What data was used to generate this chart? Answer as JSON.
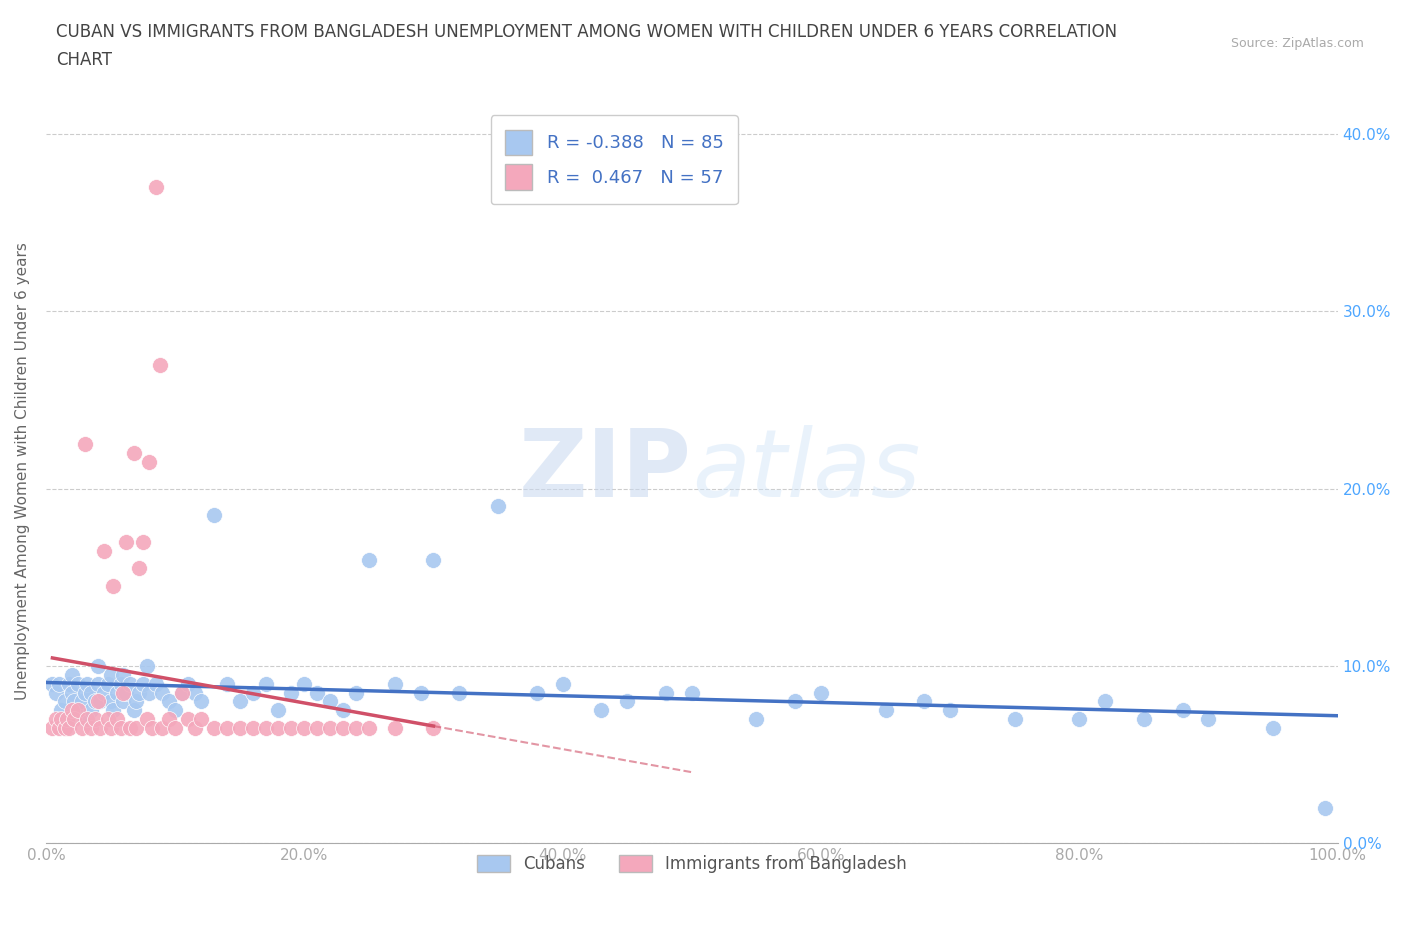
{
  "title_line1": "CUBAN VS IMMIGRANTS FROM BANGLADESH UNEMPLOYMENT AMONG WOMEN WITH CHILDREN UNDER 6 YEARS CORRELATION",
  "title_line2": "CHART",
  "source": "Source: ZipAtlas.com",
  "xlabel_ticks": [
    "0.0%",
    "20.0%",
    "40.0%",
    "60.0%",
    "80.0%",
    "100.0%"
  ],
  "xlabel_vals": [
    0.0,
    0.2,
    0.4,
    0.6,
    0.8,
    1.0
  ],
  "ylabel_ticks": [
    "0.0%",
    "10.0%",
    "20.0%",
    "30.0%",
    "40.0%"
  ],
  "ylabel_vals": [
    0.0,
    0.1,
    0.2,
    0.3,
    0.4
  ],
  "ylabel_label": "Unemployment Among Women with Children Under 6 years",
  "legend_bottom_labels": [
    "Cubans",
    "Immigrants from Bangladesh"
  ],
  "R_cubans": -0.388,
  "N_cubans": 85,
  "R_bangladesh": 0.467,
  "N_bangladesh": 57,
  "color_cubans": "#a8c8f0",
  "color_bangladesh": "#f4a8bc",
  "trendline_color_cubans": "#4472c4",
  "trendline_color_bangladesh": "#d05068",
  "watermark_zip": "ZIP",
  "watermark_atlas": "atlas",
  "background_color": "#ffffff",
  "grid_color": "#cccccc",
  "title_color": "#555555",
  "axis_color": "#aaaaaa",
  "right_tick_color": "#4da6ff",
  "ylim": [
    0,
    0.42
  ],
  "xlim": [
    0,
    1.0
  ],
  "cubans_x": [
    0.005,
    0.008,
    0.01,
    0.012,
    0.015,
    0.016,
    0.018,
    0.02,
    0.02,
    0.022,
    0.025,
    0.025,
    0.028,
    0.03,
    0.03,
    0.032,
    0.035,
    0.035,
    0.038,
    0.04,
    0.04,
    0.042,
    0.045,
    0.048,
    0.05,
    0.05,
    0.052,
    0.055,
    0.058,
    0.06,
    0.06,
    0.062,
    0.065,
    0.068,
    0.07,
    0.072,
    0.075,
    0.078,
    0.08,
    0.085,
    0.09,
    0.095,
    0.1,
    0.105,
    0.11,
    0.115,
    0.12,
    0.13,
    0.14,
    0.15,
    0.16,
    0.17,
    0.18,
    0.19,
    0.2,
    0.21,
    0.22,
    0.23,
    0.24,
    0.25,
    0.27,
    0.29,
    0.3,
    0.32,
    0.35,
    0.38,
    0.4,
    0.43,
    0.45,
    0.48,
    0.5,
    0.55,
    0.58,
    0.6,
    0.65,
    0.68,
    0.7,
    0.75,
    0.8,
    0.82,
    0.85,
    0.88,
    0.9,
    0.95,
    0.99
  ],
  "cubans_y": [
    0.09,
    0.085,
    0.09,
    0.075,
    0.08,
    0.07,
    0.09,
    0.095,
    0.085,
    0.08,
    0.09,
    0.075,
    0.08,
    0.085,
    0.07,
    0.09,
    0.085,
    0.075,
    0.08,
    0.09,
    0.1,
    0.08,
    0.085,
    0.09,
    0.095,
    0.08,
    0.075,
    0.085,
    0.09,
    0.095,
    0.08,
    0.085,
    0.09,
    0.075,
    0.08,
    0.085,
    0.09,
    0.1,
    0.085,
    0.09,
    0.085,
    0.08,
    0.075,
    0.085,
    0.09,
    0.085,
    0.08,
    0.185,
    0.09,
    0.08,
    0.085,
    0.09,
    0.075,
    0.085,
    0.09,
    0.085,
    0.08,
    0.075,
    0.085,
    0.16,
    0.09,
    0.085,
    0.16,
    0.085,
    0.19,
    0.085,
    0.09,
    0.075,
    0.08,
    0.085,
    0.085,
    0.07,
    0.08,
    0.085,
    0.075,
    0.08,
    0.075,
    0.07,
    0.07,
    0.08,
    0.07,
    0.075,
    0.07,
    0.065,
    0.02
  ],
  "bangladesh_x": [
    0.005,
    0.008,
    0.01,
    0.012,
    0.015,
    0.016,
    0.018,
    0.02,
    0.022,
    0.025,
    0.028,
    0.03,
    0.032,
    0.035,
    0.038,
    0.04,
    0.042,
    0.045,
    0.048,
    0.05,
    0.052,
    0.055,
    0.058,
    0.06,
    0.062,
    0.065,
    0.068,
    0.07,
    0.072,
    0.075,
    0.078,
    0.08,
    0.082,
    0.085,
    0.088,
    0.09,
    0.095,
    0.1,
    0.105,
    0.11,
    0.115,
    0.12,
    0.13,
    0.14,
    0.15,
    0.16,
    0.17,
    0.18,
    0.19,
    0.2,
    0.21,
    0.22,
    0.23,
    0.24,
    0.25,
    0.27,
    0.3
  ],
  "bangladesh_y": [
    0.065,
    0.07,
    0.065,
    0.07,
    0.065,
    0.07,
    0.065,
    0.075,
    0.07,
    0.075,
    0.065,
    0.225,
    0.07,
    0.065,
    0.07,
    0.08,
    0.065,
    0.165,
    0.07,
    0.065,
    0.145,
    0.07,
    0.065,
    0.085,
    0.17,
    0.065,
    0.22,
    0.065,
    0.155,
    0.17,
    0.07,
    0.215,
    0.065,
    0.37,
    0.27,
    0.065,
    0.07,
    0.065,
    0.085,
    0.07,
    0.065,
    0.07,
    0.065,
    0.065,
    0.065,
    0.065,
    0.065,
    0.065,
    0.065,
    0.065,
    0.065,
    0.065,
    0.065,
    0.065,
    0.065,
    0.065,
    0.065
  ]
}
